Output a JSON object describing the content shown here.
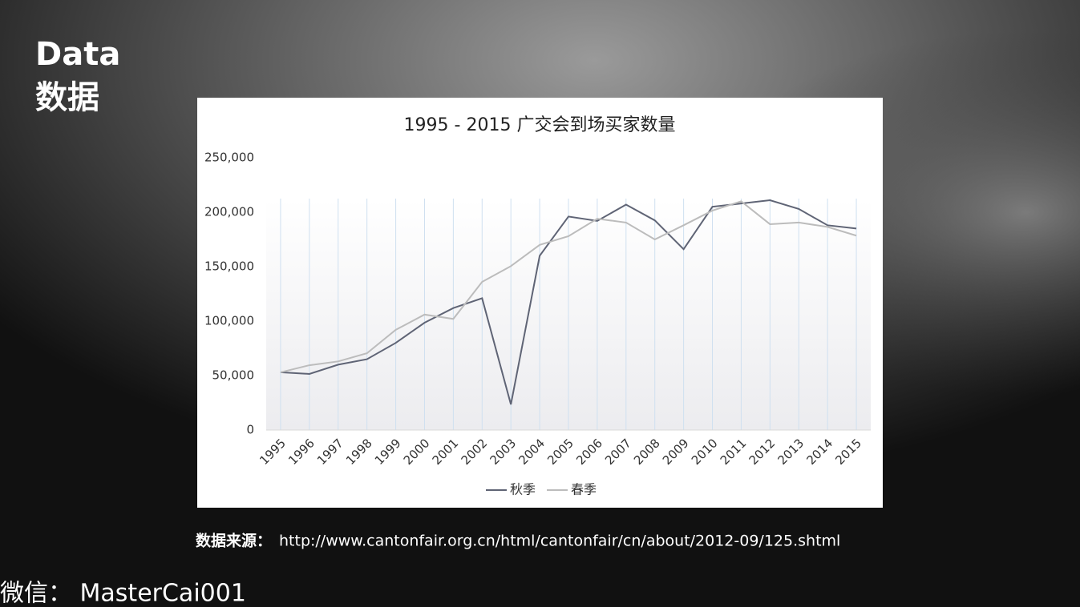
{
  "heading": {
    "line1": "Data",
    "line2": "数据"
  },
  "source": {
    "label": "数据来源：",
    "url": "http://www.cantonfair.org.cn/html/cantonfair/cn/about/2012-09/125.shtml"
  },
  "footer": "微信： MasterCai001",
  "chart_data": {
    "type": "line",
    "title": "1995 - 2015 广交会到场买家数量",
    "categories": [
      "1995",
      "1996",
      "1997",
      "1998",
      "1999",
      "2000",
      "2001",
      "2002",
      "2003",
      "2004",
      "2005",
      "2006",
      "2007",
      "2008",
      "2009",
      "2010",
      "2011",
      "2012",
      "2013",
      "2014",
      "2015"
    ],
    "series": [
      {
        "name": "秋季",
        "color": "#5f6475",
        "values": [
          53000,
          51500,
          60000,
          65000,
          80000,
          98500,
          112000,
          121000,
          23500,
          160000,
          196000,
          192000,
          207000,
          192500,
          166000,
          205000,
          208000,
          211000,
          203000,
          188000,
          185000
        ]
      },
      {
        "name": "春季",
        "color": "#bcbcbc",
        "values": [
          53000,
          59500,
          63000,
          70500,
          92000,
          106000,
          102000,
          136000,
          150500,
          170000,
          178000,
          194000,
          190500,
          175000,
          188000,
          201500,
          210000,
          189000,
          190500,
          186500,
          178500
        ]
      }
    ],
    "ylim": [
      0,
      250000
    ],
    "yticks": [
      0,
      {
        "value": 50000,
        "label": "50,000"
      },
      {
        "value": 100000,
        "label": "100,000"
      },
      {
        "value": 150000,
        "label": "150,000"
      },
      {
        "value": 200000,
        "label": "200,000"
      },
      {
        "value": 250000,
        "label": "250,000"
      }
    ],
    "grid": "x",
    "legend": "bottom"
  }
}
